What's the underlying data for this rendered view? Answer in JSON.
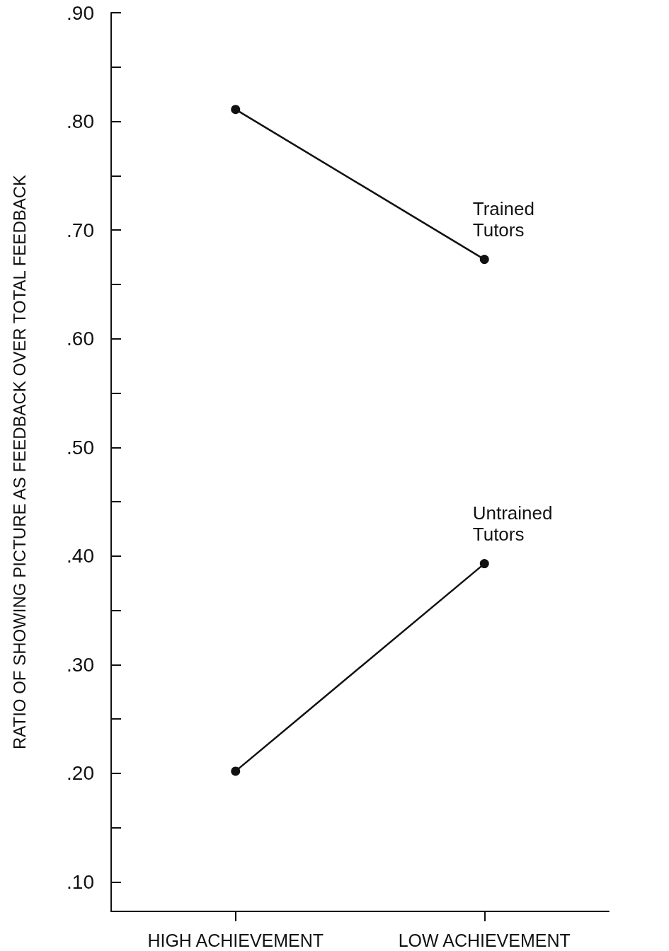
{
  "chart_data": {
    "type": "line",
    "ylabel": "RATIO OF SHOWING PICTURE AS FEEDBACK OVER TOTAL FEEDBACK",
    "categories": [
      "HIGH ACHIEVEMENT",
      "LOW ACHIEVEMENT"
    ],
    "series": [
      {
        "name": "Trained Tutors",
        "color": "#111111",
        "values": [
          0.811,
          0.673
        ]
      },
      {
        "name": "Untrained Tutors",
        "color": "#111111",
        "values": [
          0.202,
          0.393
        ]
      }
    ],
    "ylim": [
      0.073,
      0.9
    ],
    "yticks": [
      {
        "value": 0.1,
        "label": ".10"
      },
      {
        "value": 0.15,
        "label": null
      },
      {
        "value": 0.2,
        "label": ".20"
      },
      {
        "value": 0.25,
        "label": null
      },
      {
        "value": 0.3,
        "label": ".30"
      },
      {
        "value": 0.35,
        "label": null
      },
      {
        "value": 0.4,
        "label": ".40"
      },
      {
        "value": 0.45,
        "label": null
      },
      {
        "value": 0.5,
        "label": ".50"
      },
      {
        "value": 0.55,
        "label": null
      },
      {
        "value": 0.6,
        "label": ".60"
      },
      {
        "value": 0.65,
        "label": null
      },
      {
        "value": 0.7,
        "label": ".70"
      },
      {
        "value": 0.75,
        "label": null
      },
      {
        "value": 0.8,
        "label": ".80"
      },
      {
        "value": 0.85,
        "label": null
      },
      {
        "value": 0.9,
        "label": ".90"
      }
    ],
    "grid": false,
    "legend": false,
    "marker": "circle",
    "line_style": "solid"
  }
}
